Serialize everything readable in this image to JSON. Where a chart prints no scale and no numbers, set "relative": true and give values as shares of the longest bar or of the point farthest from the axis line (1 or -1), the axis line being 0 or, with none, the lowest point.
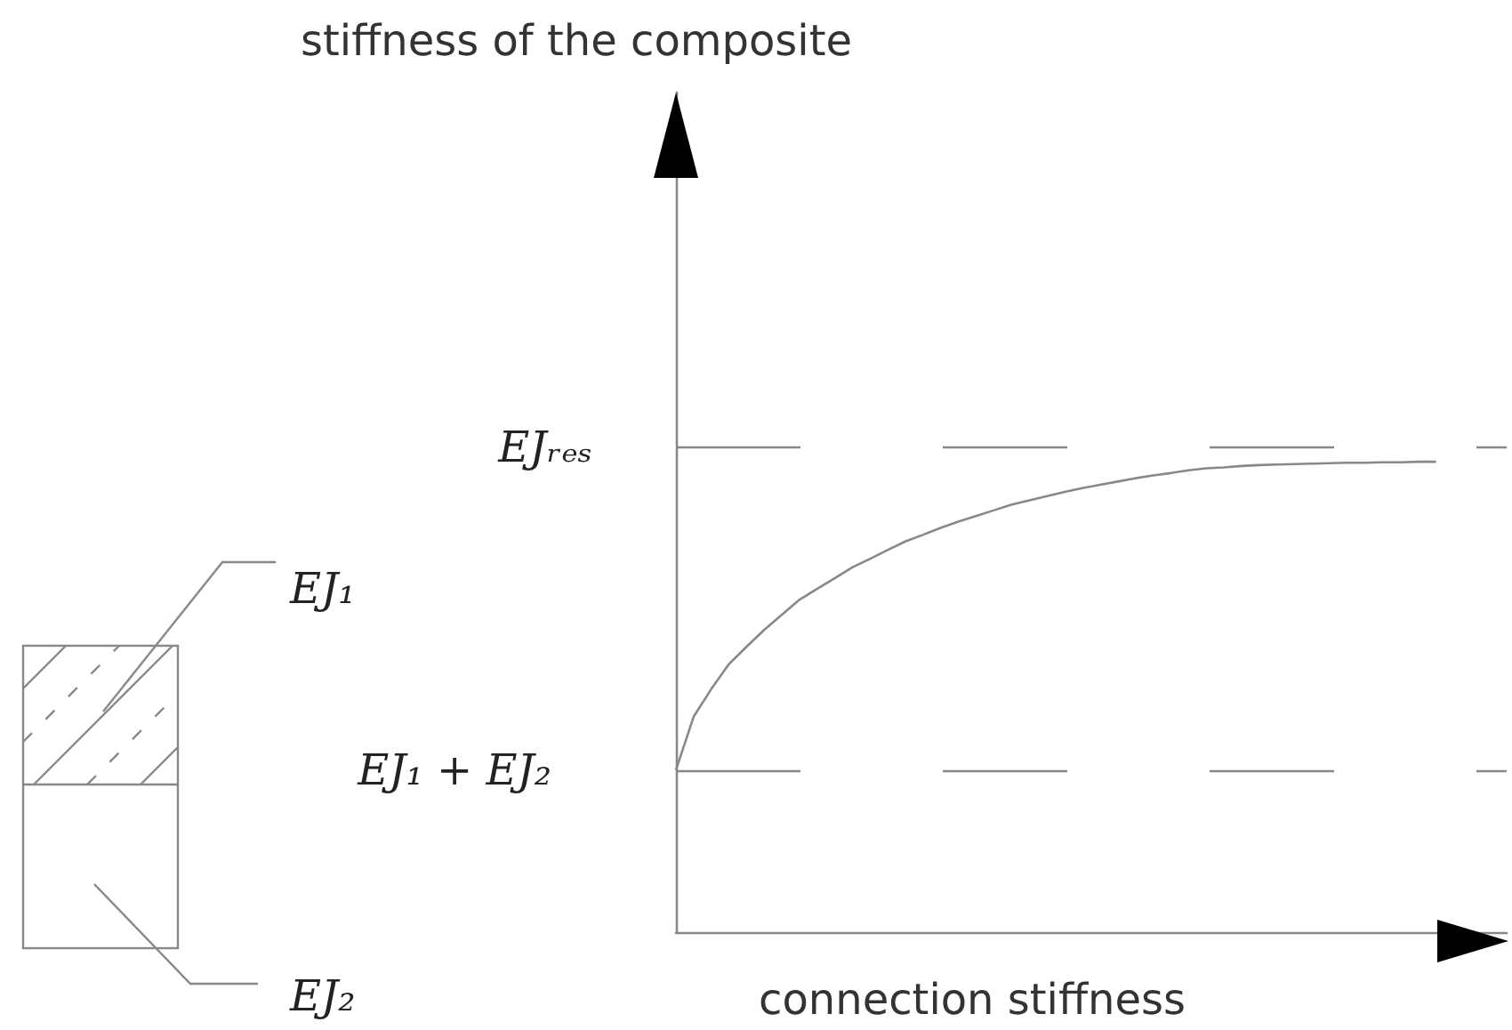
{
  "chart_data": {
    "type": "line",
    "relative": true,
    "xlabel": "connection stiffness",
    "categories": [
      null,
      null,
      null,
      null,
      null,
      null,
      null,
      null,
      null,
      null,
      null,
      null,
      null,
      null,
      null,
      null,
      null,
      null,
      null,
      null,
      null,
      null,
      null,
      null,
      null,
      null,
      null,
      null,
      null,
      null,
      null,
      null,
      null,
      null,
      null,
      null,
      null,
      null,
      null,
      null,
      null,
      null,
      null,
      null,
      null,
      null,
      null,
      null
    ],
    "series": [
      {
        "color": "#888888",
        "values": [
          0.345,
          0.458,
          0.517,
          0.57,
          0.607,
          0.643,
          0.675,
          0.707,
          0.73,
          0.753,
          0.776,
          0.794,
          0.813,
          0.831,
          0.845,
          0.86,
          0.873,
          0.885,
          0.897,
          0.909,
          0.918,
          0.927,
          0.936,
          0.944,
          0.951,
          0.958,
          0.965,
          0.971,
          0.976,
          0.982,
          0.986,
          0.988,
          0.991,
          0.993,
          0.994,
          0.995,
          0.996,
          0.997,
          0.998,
          0.998,
          0.999,
          0.999,
          1,
          1,
          null,
          null,
          null,
          null
        ]
      }
    ],
    "marker": "none",
    "ref_lines": [
      {
        "axis": "y",
        "value": 1.03,
        "label": "EJᵣₑₛ",
        "color": "#888888",
        "line_style": "dashed"
      },
      {
        "axis": "y",
        "value": 0.345,
        "label": "EJ₁ + EJ₂",
        "color": "#888888",
        "line_style": "dashed"
      }
    ],
    "annotations": [
      "stiffness of the composite",
      "EJ₁",
      "EJ₂"
    ]
  }
}
